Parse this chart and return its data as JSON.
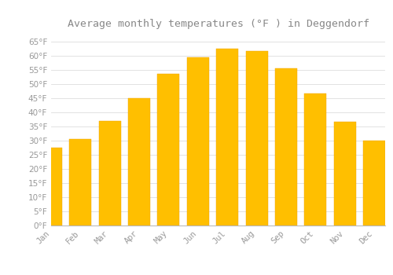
{
  "title": "Average monthly temperatures (°F ) in Deggendorf",
  "months": [
    "Jan",
    "Feb",
    "Mar",
    "Apr",
    "May",
    "Jun",
    "Jul",
    "Aug",
    "Sep",
    "Oct",
    "Nov",
    "Dec"
  ],
  "values": [
    27.5,
    30.5,
    37.0,
    45.0,
    53.5,
    59.5,
    62.5,
    61.5,
    55.5,
    46.5,
    36.5,
    30.0
  ],
  "bar_color_top": "#FFBF00",
  "bar_color_bottom": "#FFA500",
  "bar_edge_color": "#F0A000",
  "background_color": "#FFFFFF",
  "grid_color": "#DDDDDD",
  "text_color": "#999999",
  "title_color": "#888888",
  "ylim": [
    0,
    68
  ],
  "yticks": [
    0,
    5,
    10,
    15,
    20,
    25,
    30,
    35,
    40,
    45,
    50,
    55,
    60,
    65
  ],
  "title_fontsize": 9.5,
  "tick_fontsize": 7.5,
  "font_family": "monospace",
  "bar_width": 0.75
}
